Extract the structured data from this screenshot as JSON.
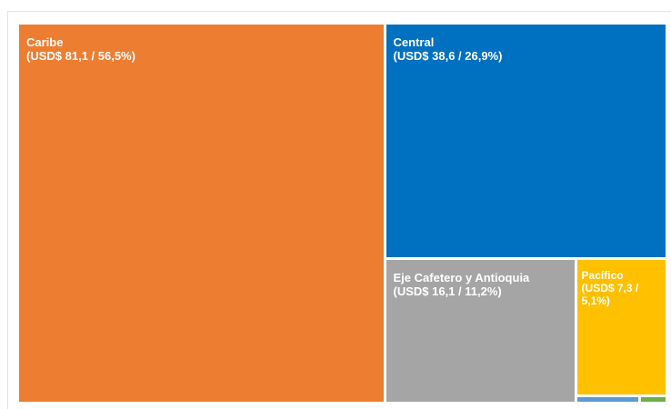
{
  "chart_data": {
    "type": "treemap",
    "categories": [
      "Caribe",
      "Central",
      "Eje Cafetero y Antioquia",
      "Pacífico",
      null,
      null
    ],
    "values": [
      81.1,
      38.6,
      16.1,
      7.3,
      0.28,
      0.12
    ],
    "value_labels": [
      "(USD$ 81,1 / 56,5%)",
      "(USD$ 38,6 / 26,9%)",
      "(USD$ 16,1 / 11,2%)",
      "(USD$ 7,3 / 5,1%)",
      null,
      null
    ],
    "colors": [
      "#ED7D31",
      "#0070C0",
      "#A5A5A5",
      "#FFC000",
      "#5B9BD5",
      "#70AD47"
    ]
  }
}
